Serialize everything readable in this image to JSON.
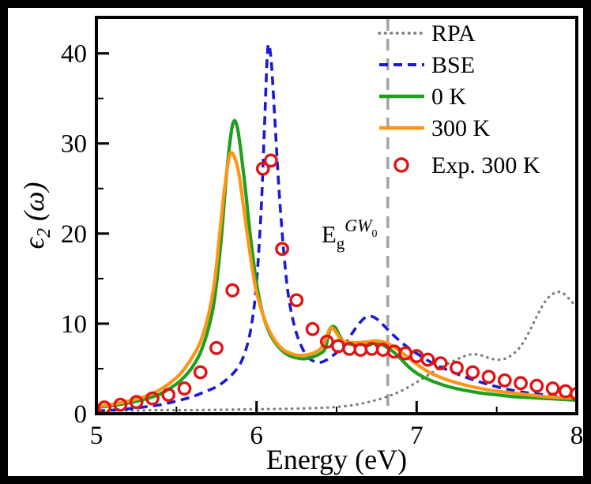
{
  "chart_data": {
    "type": "line",
    "title": "",
    "xlabel": "Energy (eV)",
    "ylabel": "ϵ₂ (ω)",
    "ylabel_parts": {
      "symbol": "ϵ",
      "sub": "2",
      "rest": "(ω)"
    },
    "xlim": [
      5,
      8
    ],
    "ylim": [
      0,
      44
    ],
    "xticks": [
      5,
      6,
      7,
      8
    ],
    "yticks": [
      0,
      10,
      20,
      30,
      40
    ],
    "grid": false,
    "legend_position": "top-right",
    "annotation": {
      "x": 6.82,
      "line_style": "dashed",
      "line_color": "#a3a3a3",
      "label_parts": {
        "base": "E",
        "sub": "g",
        "sup": "GW",
        "sup_sub": "0"
      }
    },
    "series": [
      {
        "name": "RPA",
        "type": "line",
        "style": "dotted",
        "color": "#7a7a7a",
        "width": 3.2,
        "points": [
          [
            5.0,
            0.35
          ],
          [
            5.2,
            0.35
          ],
          [
            5.4,
            0.4
          ],
          [
            5.6,
            0.4
          ],
          [
            5.8,
            0.45
          ],
          [
            6.0,
            0.5
          ],
          [
            6.2,
            0.55
          ],
          [
            6.4,
            0.65
          ],
          [
            6.5,
            0.75
          ],
          [
            6.6,
            0.95
          ],
          [
            6.7,
            1.3
          ],
          [
            6.8,
            1.8
          ],
          [
            6.9,
            2.5
          ],
          [
            7.0,
            3.5
          ],
          [
            7.1,
            4.6
          ],
          [
            7.2,
            5.6
          ],
          [
            7.3,
            6.4
          ],
          [
            7.35,
            6.6
          ],
          [
            7.4,
            6.5
          ],
          [
            7.45,
            6.2
          ],
          [
            7.5,
            6.0
          ],
          [
            7.55,
            6.1
          ],
          [
            7.6,
            6.6
          ],
          [
            7.65,
            7.5
          ],
          [
            7.7,
            9.0
          ],
          [
            7.75,
            10.8
          ],
          [
            7.8,
            12.4
          ],
          [
            7.85,
            13.3
          ],
          [
            7.9,
            13.5
          ],
          [
            7.95,
            12.8
          ],
          [
            8.0,
            11.8
          ]
        ]
      },
      {
        "name": "BSE",
        "type": "line",
        "style": "dashed",
        "color": "#1a1ad2",
        "width": 3.6,
        "points": [
          [
            5.0,
            0.3
          ],
          [
            5.1,
            0.4
          ],
          [
            5.2,
            0.55
          ],
          [
            5.3,
            0.75
          ],
          [
            5.4,
            1.0
          ],
          [
            5.5,
            1.4
          ],
          [
            5.6,
            1.9
          ],
          [
            5.7,
            2.6
          ],
          [
            5.75,
            3.0
          ],
          [
            5.8,
            3.6
          ],
          [
            5.85,
            4.4
          ],
          [
            5.9,
            5.6
          ],
          [
            5.94,
            7.5
          ],
          [
            5.97,
            10.0
          ],
          [
            6.0,
            14.5
          ],
          [
            6.03,
            23.0
          ],
          [
            6.05,
            32.0
          ],
          [
            6.07,
            40.5
          ],
          [
            6.09,
            39.5
          ],
          [
            6.11,
            34.0
          ],
          [
            6.14,
            25.0
          ],
          [
            6.17,
            18.0
          ],
          [
            6.2,
            13.0
          ],
          [
            6.24,
            9.5
          ],
          [
            6.28,
            7.5
          ],
          [
            6.32,
            6.3
          ],
          [
            6.36,
            5.8
          ],
          [
            6.4,
            5.7
          ],
          [
            6.44,
            6.0
          ],
          [
            6.48,
            6.5
          ],
          [
            6.52,
            7.1
          ],
          [
            6.56,
            7.9
          ],
          [
            6.6,
            9.0
          ],
          [
            6.64,
            10.0
          ],
          [
            6.68,
            10.7
          ],
          [
            6.72,
            10.8
          ],
          [
            6.76,
            10.4
          ],
          [
            6.8,
            9.7
          ],
          [
            6.85,
            8.8
          ],
          [
            6.9,
            8.0
          ],
          [
            6.95,
            7.3
          ],
          [
            7.0,
            6.7
          ],
          [
            7.1,
            5.6
          ],
          [
            7.2,
            4.8
          ],
          [
            7.3,
            4.1
          ],
          [
            7.4,
            3.5
          ],
          [
            7.5,
            3.0
          ],
          [
            7.6,
            2.6
          ],
          [
            7.7,
            2.3
          ],
          [
            7.8,
            2.1
          ],
          [
            7.9,
            1.9
          ],
          [
            8.0,
            1.7
          ]
        ]
      },
      {
        "name": "0 K",
        "type": "line",
        "style": "solid",
        "color": "#1f9e1f",
        "width": 4.2,
        "points": [
          [
            5.0,
            0.7
          ],
          [
            5.1,
            0.9
          ],
          [
            5.2,
            1.2
          ],
          [
            5.3,
            1.6
          ],
          [
            5.4,
            2.2
          ],
          [
            5.5,
            3.3
          ],
          [
            5.55,
            4.1
          ],
          [
            5.6,
            5.2
          ],
          [
            5.65,
            6.8
          ],
          [
            5.7,
            9.5
          ],
          [
            5.74,
            13.0
          ],
          [
            5.78,
            19.5
          ],
          [
            5.81,
            26.0
          ],
          [
            5.84,
            31.0
          ],
          [
            5.86,
            32.5
          ],
          [
            5.88,
            31.8
          ],
          [
            5.9,
            29.5
          ],
          [
            5.93,
            25.0
          ],
          [
            5.96,
            20.0
          ],
          [
            6.0,
            14.5
          ],
          [
            6.04,
            11.0
          ],
          [
            6.08,
            9.0
          ],
          [
            6.12,
            7.8
          ],
          [
            6.16,
            7.0
          ],
          [
            6.2,
            6.5
          ],
          [
            6.25,
            6.2
          ],
          [
            6.3,
            6.1
          ],
          [
            6.35,
            6.3
          ],
          [
            6.4,
            6.7
          ],
          [
            6.43,
            7.3
          ],
          [
            6.46,
            9.4
          ],
          [
            6.49,
            9.6
          ],
          [
            6.52,
            8.6
          ],
          [
            6.55,
            7.9
          ],
          [
            6.6,
            7.7
          ],
          [
            6.65,
            7.7
          ],
          [
            6.7,
            7.6
          ],
          [
            6.74,
            7.9
          ],
          [
            6.78,
            7.7
          ],
          [
            6.82,
            7.3
          ],
          [
            6.86,
            6.8
          ],
          [
            6.9,
            6.1
          ],
          [
            6.95,
            5.2
          ],
          [
            7.0,
            4.5
          ],
          [
            7.05,
            4.0
          ],
          [
            7.1,
            3.6
          ],
          [
            7.2,
            3.0
          ],
          [
            7.3,
            2.6
          ],
          [
            7.4,
            2.3
          ],
          [
            7.5,
            2.1
          ],
          [
            7.6,
            1.9
          ],
          [
            7.7,
            1.8
          ],
          [
            7.8,
            1.7
          ],
          [
            7.9,
            1.6
          ],
          [
            8.0,
            1.5
          ]
        ]
      },
      {
        "name": "300 K",
        "type": "line",
        "style": "solid",
        "color": "#ff9514",
        "width": 4.2,
        "points": [
          [
            5.0,
            0.8
          ],
          [
            5.1,
            1.05
          ],
          [
            5.2,
            1.4
          ],
          [
            5.3,
            1.9
          ],
          [
            5.4,
            2.7
          ],
          [
            5.5,
            4.0
          ],
          [
            5.55,
            5.0
          ],
          [
            5.6,
            6.3
          ],
          [
            5.65,
            8.0
          ],
          [
            5.7,
            11.0
          ],
          [
            5.74,
            15.0
          ],
          [
            5.77,
            20.0
          ],
          [
            5.8,
            25.0
          ],
          [
            5.83,
            28.5
          ],
          [
            5.85,
            28.9
          ],
          [
            5.88,
            27.5
          ],
          [
            5.9,
            25.5
          ],
          [
            5.93,
            21.5
          ],
          [
            5.97,
            16.5
          ],
          [
            6.0,
            13.5
          ],
          [
            6.04,
            11.0
          ],
          [
            6.08,
            9.2
          ],
          [
            6.12,
            8.0
          ],
          [
            6.16,
            7.2
          ],
          [
            6.2,
            6.8
          ],
          [
            6.25,
            6.5
          ],
          [
            6.3,
            6.5
          ],
          [
            6.35,
            6.7
          ],
          [
            6.4,
            7.2
          ],
          [
            6.43,
            8.2
          ],
          [
            6.46,
            9.5
          ],
          [
            6.49,
            9.2
          ],
          [
            6.52,
            8.4
          ],
          [
            6.55,
            8.0
          ],
          [
            6.6,
            7.9
          ],
          [
            6.65,
            7.9
          ],
          [
            6.7,
            8.0
          ],
          [
            6.74,
            8.1
          ],
          [
            6.78,
            8.0
          ],
          [
            6.82,
            7.8
          ],
          [
            6.86,
            7.4
          ],
          [
            6.9,
            6.9
          ],
          [
            6.95,
            6.2
          ],
          [
            7.0,
            5.5
          ],
          [
            7.05,
            4.9
          ],
          [
            7.1,
            4.4
          ],
          [
            7.2,
            3.7
          ],
          [
            7.3,
            3.2
          ],
          [
            7.4,
            2.8
          ],
          [
            7.5,
            2.5
          ],
          [
            7.6,
            2.3
          ],
          [
            7.7,
            2.1
          ],
          [
            7.8,
            1.9
          ],
          [
            7.9,
            1.8
          ],
          [
            8.0,
            1.7
          ]
        ]
      },
      {
        "name": "Exp. 300 K",
        "type": "scatter",
        "marker": "open-circle",
        "color": "#e01414",
        "width": 3.4,
        "points": [
          [
            5.05,
            0.7
          ],
          [
            5.15,
            1.0
          ],
          [
            5.25,
            1.3
          ],
          [
            5.35,
            1.7
          ],
          [
            5.45,
            2.1
          ],
          [
            5.55,
            2.8
          ],
          [
            5.65,
            4.6
          ],
          [
            5.75,
            7.3
          ],
          [
            5.85,
            13.7
          ],
          [
            6.04,
            27.2
          ],
          [
            6.09,
            28.1
          ],
          [
            6.16,
            18.3
          ],
          [
            6.25,
            12.6
          ],
          [
            6.35,
            9.4
          ],
          [
            6.44,
            8.0
          ],
          [
            6.51,
            7.5
          ],
          [
            6.58,
            7.2
          ],
          [
            6.65,
            7.1
          ],
          [
            6.72,
            7.2
          ],
          [
            6.79,
            7.1
          ],
          [
            6.86,
            6.9
          ],
          [
            6.93,
            6.7
          ],
          [
            7.0,
            6.4
          ],
          [
            7.07,
            6.0
          ],
          [
            7.15,
            5.6
          ],
          [
            7.25,
            5.1
          ],
          [
            7.35,
            4.6
          ],
          [
            7.45,
            4.1
          ],
          [
            7.55,
            3.7
          ],
          [
            7.65,
            3.4
          ],
          [
            7.75,
            3.1
          ],
          [
            7.85,
            2.8
          ],
          [
            7.93,
            2.5
          ],
          [
            8.0,
            2.2
          ]
        ]
      }
    ]
  }
}
